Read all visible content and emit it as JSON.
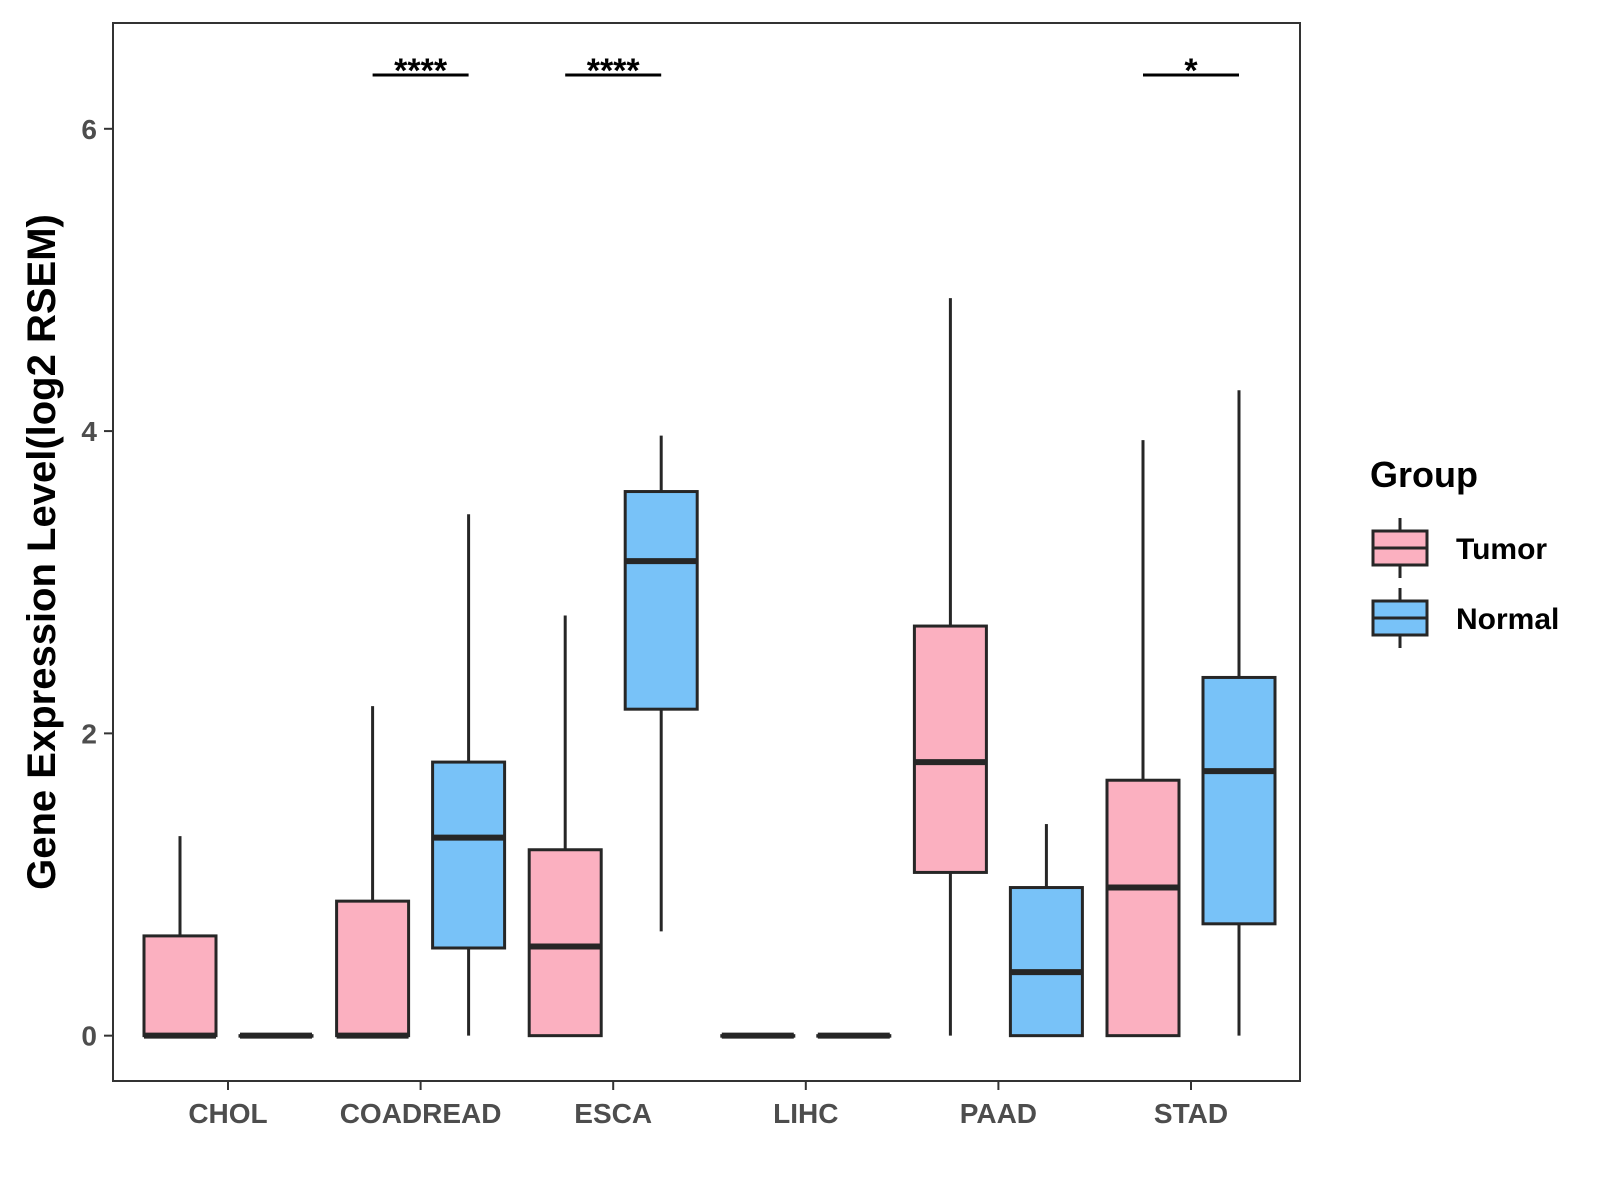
{
  "chart_data": {
    "type": "boxplot",
    "title": "",
    "xlabel": "",
    "ylabel": "Gene Expression Level(log2 RSEM)",
    "ylim": [
      -0.3,
      6.7
    ],
    "yticks": [
      0,
      2,
      4,
      6
    ],
    "grid": false,
    "categories": [
      "CHOL",
      "COADREAD",
      "ESCA",
      "LIHC",
      "PAAD",
      "STAD"
    ],
    "legend": {
      "title": "Group",
      "position": "right",
      "items": [
        {
          "label": "Tumor",
          "color": "#FBB0C0"
        },
        {
          "label": "Normal",
          "color": "#78C2F8"
        }
      ]
    },
    "series": [
      {
        "name": "Tumor",
        "color": "#FBB0C0",
        "boxes": [
          {
            "category": "CHOL",
            "min": 0,
            "q1": 0,
            "median": 0,
            "q3": 0.66,
            "max": 1.32
          },
          {
            "category": "COADREAD",
            "min": 0,
            "q1": 0,
            "median": 0,
            "q3": 0.89,
            "max": 2.18
          },
          {
            "category": "ESCA",
            "min": 0,
            "q1": 0,
            "median": 0.59,
            "q3": 1.23,
            "max": 2.78
          },
          {
            "category": "LIHC",
            "min": 0,
            "q1": 0,
            "median": 0,
            "q3": 0,
            "max": 0
          },
          {
            "category": "PAAD",
            "min": 0,
            "q1": 1.08,
            "median": 1.81,
            "q3": 2.71,
            "max": 4.88
          },
          {
            "category": "STAD",
            "min": 0,
            "q1": 0,
            "median": 0.98,
            "q3": 1.69,
            "max": 3.94
          }
        ]
      },
      {
        "name": "Normal",
        "color": "#78C2F8",
        "boxes": [
          {
            "category": "CHOL",
            "min": 0,
            "q1": 0,
            "median": 0,
            "q3": 0,
            "max": 0
          },
          {
            "category": "COADREAD",
            "min": 0,
            "q1": 0.58,
            "median": 1.31,
            "q3": 1.81,
            "max": 3.45
          },
          {
            "category": "ESCA",
            "min": 0.69,
            "q1": 2.16,
            "median": 3.14,
            "q3": 3.6,
            "max": 3.97
          },
          {
            "category": "LIHC",
            "min": 0,
            "q1": 0,
            "median": 0,
            "q3": 0,
            "max": 0
          },
          {
            "category": "PAAD",
            "min": 0,
            "q1": 0,
            "median": 0.42,
            "q3": 0.98,
            "max": 1.4
          },
          {
            "category": "STAD",
            "min": 0,
            "q1": 0.74,
            "median": 1.75,
            "q3": 2.37,
            "max": 4.27
          }
        ]
      }
    ],
    "significance": [
      {
        "category": "COADREAD",
        "label": "****"
      },
      {
        "category": "ESCA",
        "label": "****"
      },
      {
        "category": "STAD",
        "label": "*"
      }
    ]
  }
}
